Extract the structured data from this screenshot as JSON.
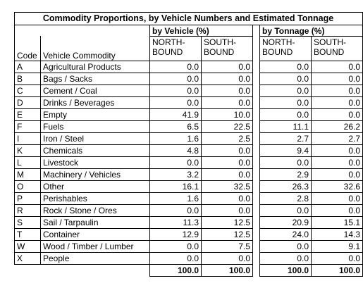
{
  "title": "Commodity Proportions, by Vehicle Numbers and Estimated Tonnage",
  "groups": {
    "vehicle": "by Vehicle (%)",
    "tonnage": "by Tonnage (%)"
  },
  "headers": {
    "code": "Code",
    "commodity": "Vehicle Commodity",
    "veh_north": "NORTH-BOUND",
    "veh_south": "SOUTH-BOUND",
    "ton_north": "NORTH-BOUND",
    "ton_south": "SOUTH-BOUND"
  },
  "rows": [
    {
      "code": "A",
      "commodity": "Agricultural Products",
      "veh_n": "0.0",
      "veh_s": "0.0",
      "ton_n": "0.0",
      "ton_s": "0.0"
    },
    {
      "code": "B",
      "commodity": "Bags / Sacks",
      "veh_n": "0.0",
      "veh_s": "0.0",
      "ton_n": "0.0",
      "ton_s": "0.0"
    },
    {
      "code": "C",
      "commodity": "Cement / Coal",
      "veh_n": "0.0",
      "veh_s": "0.0",
      "ton_n": "0.0",
      "ton_s": "0.0"
    },
    {
      "code": "D",
      "commodity": "Drinks / Beverages",
      "veh_n": "0.0",
      "veh_s": "0.0",
      "ton_n": "0.0",
      "ton_s": "0.0"
    },
    {
      "code": "E",
      "commodity": "Empty",
      "veh_n": "41.9",
      "veh_s": "10.0",
      "ton_n": "0.0",
      "ton_s": "0.0"
    },
    {
      "code": "F",
      "commodity": "Fuels",
      "veh_n": "6.5",
      "veh_s": "22.5",
      "ton_n": "11.1",
      "ton_s": "26.2"
    },
    {
      "code": "I",
      "commodity": "Iron / Steel",
      "veh_n": "1.6",
      "veh_s": "2.5",
      "ton_n": "2.7",
      "ton_s": "2.7"
    },
    {
      "code": "K",
      "commodity": "Chemicals",
      "veh_n": "4.8",
      "veh_s": "0.0",
      "ton_n": "9.4",
      "ton_s": "0.0"
    },
    {
      "code": "L",
      "commodity": "Livestock",
      "veh_n": "0.0",
      "veh_s": "0.0",
      "ton_n": "0.0",
      "ton_s": "0.0"
    },
    {
      "code": "M",
      "commodity": "Machinery / Vehicles",
      "veh_n": "3.2",
      "veh_s": "0.0",
      "ton_n": "2.9",
      "ton_s": "0.0"
    },
    {
      "code": "O",
      "commodity": "Other",
      "veh_n": "16.1",
      "veh_s": "32.5",
      "ton_n": "26.3",
      "ton_s": "32.6"
    },
    {
      "code": "P",
      "commodity": "Perishables",
      "veh_n": "1.6",
      "veh_s": "0.0",
      "ton_n": "2.8",
      "ton_s": "0.0"
    },
    {
      "code": "R",
      "commodity": "Rock / Stone / Ores",
      "veh_n": "0.0",
      "veh_s": "0.0",
      "ton_n": "0.0",
      "ton_s": "0.0"
    },
    {
      "code": "S",
      "commodity": "Sail / Tarpaulin",
      "veh_n": "11.3",
      "veh_s": "12.5",
      "ton_n": "20.9",
      "ton_s": "15.1"
    },
    {
      "code": "T",
      "commodity": "Container",
      "veh_n": "12.9",
      "veh_s": "12.5",
      "ton_n": "24.0",
      "ton_s": "14.3"
    },
    {
      "code": "W",
      "commodity": "Wood / Timber / Lumber",
      "veh_n": "0.0",
      "veh_s": "7.5",
      "ton_n": "0.0",
      "ton_s": "9.1"
    },
    {
      "code": "X",
      "commodity": "People",
      "veh_n": "0.0",
      "veh_s": "0.0",
      "ton_n": "0.0",
      "ton_s": "0.0"
    }
  ],
  "totals": {
    "veh_n": "100.0",
    "veh_s": "100.0",
    "ton_n": "100.0",
    "ton_s": "100.0"
  }
}
